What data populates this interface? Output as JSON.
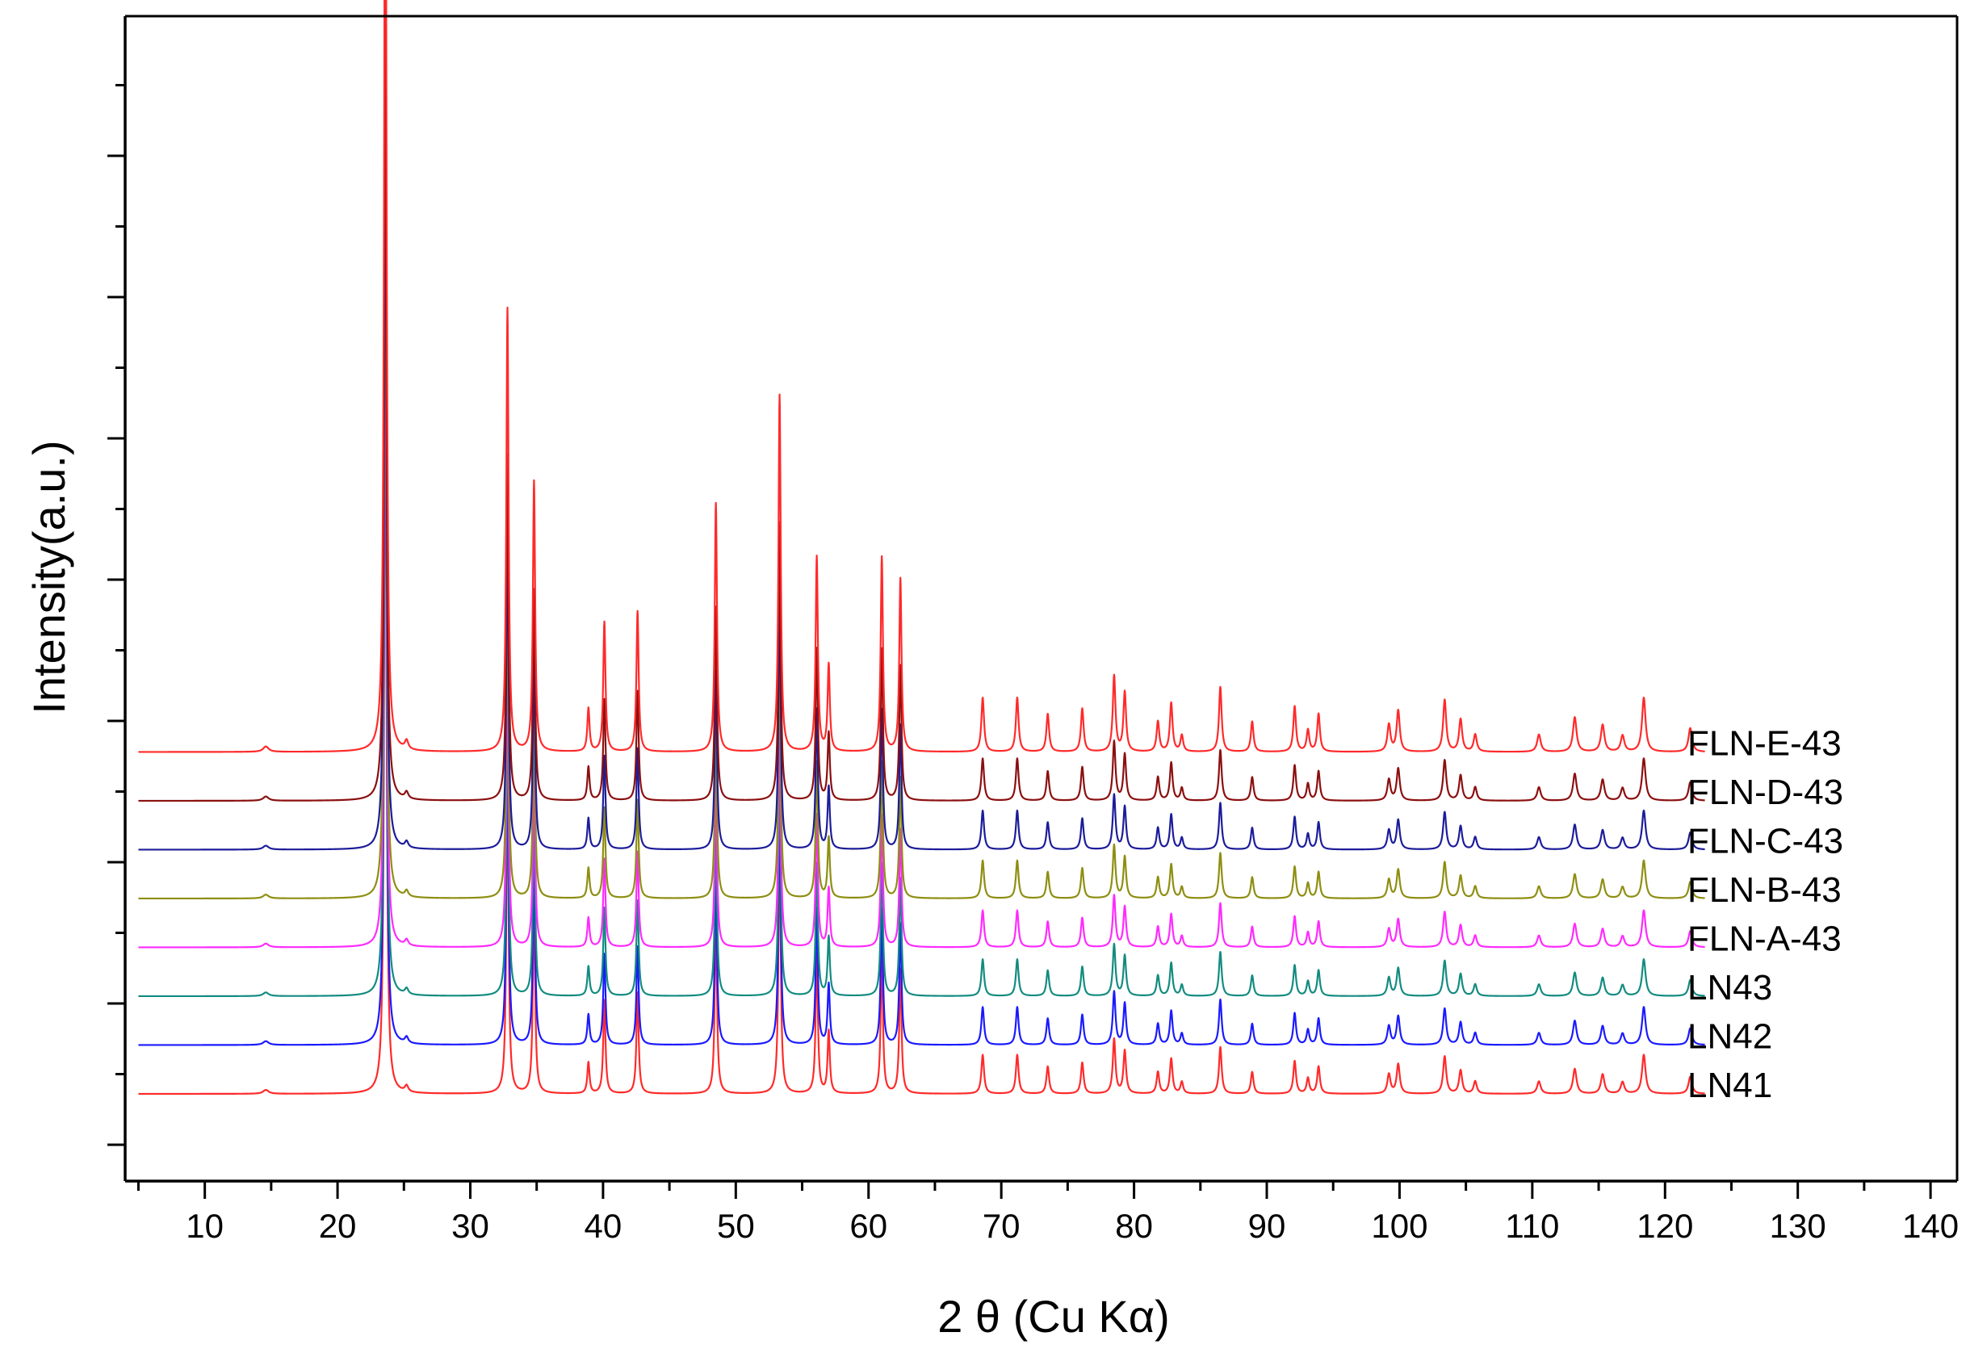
{
  "chart_data": {
    "type": "line",
    "title": "",
    "xlabel": "2 θ (Cu Kα)",
    "ylabel": "Intensity(a.u.)",
    "xlim": [
      4,
      142
    ],
    "x_ticks": [
      10,
      20,
      30,
      40,
      50,
      60,
      70,
      80,
      90,
      100,
      110,
      120,
      130,
      140
    ],
    "x_tick_labels": [
      "10",
      "20",
      "30",
      "40",
      "50",
      "60",
      "70",
      "80",
      "90",
      "100",
      "110",
      "120",
      "130",
      "140"
    ],
    "y_tick_labels": "none",
    "x_data_range": [
      5,
      123
    ],
    "grid": false,
    "legend": "series labels at right end of each trace",
    "series": [
      {
        "name": "FLN-E-43",
        "color": "#ff2a2a",
        "offset": 7,
        "scale": 1.0
      },
      {
        "name": "FLN-D-43",
        "color": "#8b0f0f",
        "offset": 6,
        "scale": 0.78
      },
      {
        "name": "FLN-C-43",
        "color": "#1c1c9a",
        "offset": 5,
        "scale": 0.72
      },
      {
        "name": "FLN-B-43",
        "color": "#8e8e12",
        "offset": 4,
        "scale": 0.7
      },
      {
        "name": "FLN-A-43",
        "color": "#ff2aff",
        "offset": 3,
        "scale": 0.68
      },
      {
        "name": "LN43",
        "color": "#138b80",
        "offset": 2,
        "scale": 0.68
      },
      {
        "name": "LN42",
        "color": "#1a1aff",
        "offset": 1,
        "scale": 0.7
      },
      {
        "name": "LN41",
        "color": "#ff2a2a",
        "offset": 0,
        "scale": 0.72
      }
    ],
    "peaks": [
      {
        "x": 14.6,
        "h": 0.5,
        "w": 0.25
      },
      {
        "x": 23.6,
        "h": 100,
        "w": 0.1
      },
      {
        "x": 25.2,
        "h": 0.8,
        "w": 0.15
      },
      {
        "x": 32.8,
        "h": 41,
        "w": 0.1
      },
      {
        "x": 34.8,
        "h": 25,
        "w": 0.1
      },
      {
        "x": 38.9,
        "h": 4,
        "w": 0.1
      },
      {
        "x": 40.1,
        "h": 12,
        "w": 0.1
      },
      {
        "x": 42.6,
        "h": 13,
        "w": 0.1
      },
      {
        "x": 48.5,
        "h": 23,
        "w": 0.1
      },
      {
        "x": 53.3,
        "h": 33,
        "w": 0.1
      },
      {
        "x": 56.1,
        "h": 18,
        "w": 0.1
      },
      {
        "x": 57.0,
        "h": 8,
        "w": 0.1
      },
      {
        "x": 61.0,
        "h": 18,
        "w": 0.1
      },
      {
        "x": 62.4,
        "h": 16,
        "w": 0.1
      },
      {
        "x": 68.6,
        "h": 5,
        "w": 0.12
      },
      {
        "x": 71.2,
        "h": 5,
        "w": 0.12
      },
      {
        "x": 73.5,
        "h": 3.5,
        "w": 0.12
      },
      {
        "x": 76.1,
        "h": 4,
        "w": 0.12
      },
      {
        "x": 78.5,
        "h": 7,
        "w": 0.12
      },
      {
        "x": 79.3,
        "h": 5.5,
        "w": 0.12
      },
      {
        "x": 81.8,
        "h": 2.8,
        "w": 0.12
      },
      {
        "x": 82.8,
        "h": 4.5,
        "w": 0.12
      },
      {
        "x": 83.6,
        "h": 1.5,
        "w": 0.12
      },
      {
        "x": 86.5,
        "h": 6,
        "w": 0.12
      },
      {
        "x": 88.9,
        "h": 2.8,
        "w": 0.12
      },
      {
        "x": 92.1,
        "h": 4.2,
        "w": 0.12
      },
      {
        "x": 93.1,
        "h": 2,
        "w": 0.12
      },
      {
        "x": 93.9,
        "h": 3.5,
        "w": 0.12
      },
      {
        "x": 99.2,
        "h": 2.5,
        "w": 0.14
      },
      {
        "x": 99.9,
        "h": 3.8,
        "w": 0.14
      },
      {
        "x": 103.4,
        "h": 4.8,
        "w": 0.14
      },
      {
        "x": 104.6,
        "h": 3,
        "w": 0.14
      },
      {
        "x": 105.7,
        "h": 1.6,
        "w": 0.14
      },
      {
        "x": 110.5,
        "h": 1.6,
        "w": 0.16
      },
      {
        "x": 113.2,
        "h": 3.2,
        "w": 0.16
      },
      {
        "x": 115.3,
        "h": 2.5,
        "w": 0.16
      },
      {
        "x": 116.8,
        "h": 1.5,
        "w": 0.16
      },
      {
        "x": 118.4,
        "h": 5,
        "w": 0.16
      },
      {
        "x": 121.9,
        "h": 2.2,
        "w": 0.16
      }
    ]
  }
}
